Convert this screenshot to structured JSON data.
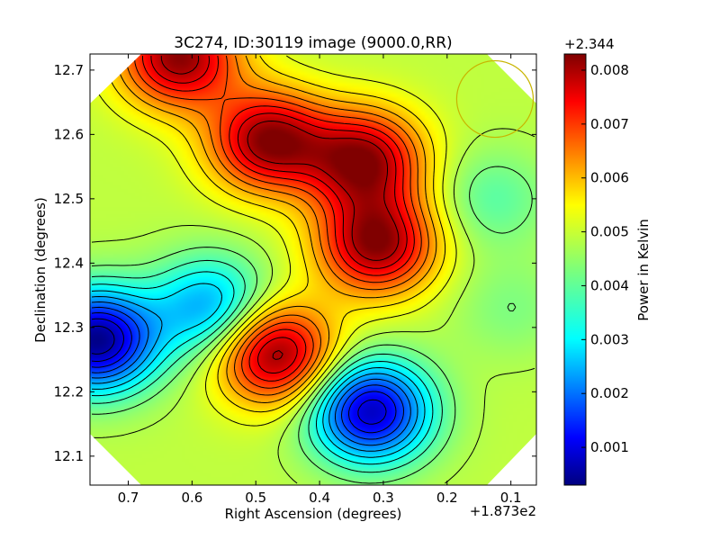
{
  "chart_data": {
    "type": "heatmap",
    "title": "3C274, ID:30119 image (9000.0,RR)",
    "xlabel": "Right Ascension (degrees)",
    "ylabel": "Declination (degrees)",
    "x_offset_label": "+1.873e2",
    "xlim": [
      0.76,
      0.06
    ],
    "ylim": [
      12.055,
      12.725
    ],
    "x_ticks": [
      "0.7",
      "0.6",
      "0.5",
      "0.4",
      "0.3",
      "0.2",
      "0.1"
    ],
    "x_tick_values": [
      0.7,
      0.6,
      0.5,
      0.4,
      0.3,
      0.2,
      0.1
    ],
    "y_ticks": [
      "12.1",
      "12.2",
      "12.3",
      "12.4",
      "12.5",
      "12.6",
      "12.7"
    ],
    "y_tick_values": [
      12.1,
      12.2,
      12.3,
      12.4,
      12.5,
      12.6,
      12.7
    ],
    "colorbar": {
      "label": "Power in Kelvin",
      "offset_label": "+2.344",
      "range": [
        0.0003,
        0.0083
      ],
      "ticks": [
        "0.001",
        "0.002",
        "0.003",
        "0.004",
        "0.005",
        "0.006",
        "0.007",
        "0.008"
      ],
      "tick_values": [
        0.001,
        0.002,
        0.003,
        0.004,
        0.005,
        0.006,
        0.007,
        0.008
      ],
      "colormap": "jet"
    },
    "contours": "black",
    "grid": false,
    "peaks": [
      {
        "ra": 0.62,
        "dec": 12.72,
        "value": 0.0082
      },
      {
        "ra": 0.48,
        "dec": 12.59,
        "value": 0.0082
      },
      {
        "ra": 0.33,
        "dec": 12.56,
        "value": 0.0081
      },
      {
        "ra": 0.31,
        "dec": 12.43,
        "value": 0.0082
      },
      {
        "ra": 0.47,
        "dec": 12.26,
        "value": 0.0083
      }
    ],
    "minima": [
      {
        "ra": 0.32,
        "dec": 12.17,
        "value": 0.0008
      },
      {
        "ra": 0.75,
        "dec": 12.28,
        "value": 0.0004
      },
      {
        "ra": 0.57,
        "dec": 12.33,
        "value": 0.0025
      },
      {
        "ra": 0.13,
        "dec": 12.5,
        "value": 0.004
      },
      {
        "ra": 0.1,
        "dec": 12.33,
        "value": 0.0043
      }
    ],
    "annotations": [
      {
        "shape": "circle",
        "color": "#c8b400",
        "ra": 0.125,
        "dec": 12.655,
        "radius_deg": 0.06
      }
    ]
  }
}
